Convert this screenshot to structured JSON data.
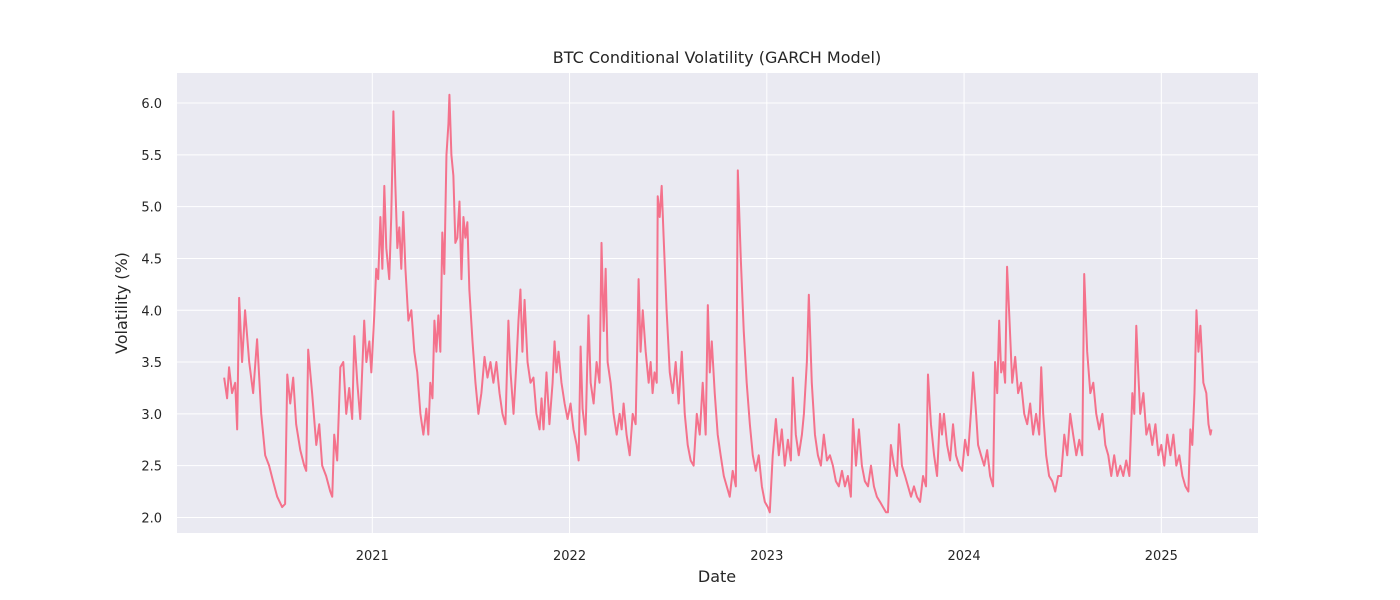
{
  "chart_data": {
    "type": "line",
    "title": "BTC Conditional Volatility (GARCH Model)",
    "xlabel": "Date",
    "ylabel": "Volatility (%)",
    "color": "#f4728c",
    "grid": true,
    "xlim": [
      2020.01,
      2025.49
    ],
    "ylim": [
      1.85,
      6.29
    ],
    "xticks": [
      2021,
      2022,
      2023,
      2024,
      2025
    ],
    "yticks": [
      {
        "value": 2,
        "label": "2.0"
      },
      {
        "value": 2.5,
        "label": "2.5"
      },
      {
        "value": 3,
        "label": "3.0"
      },
      {
        "value": 3.5,
        "label": "3.5"
      },
      {
        "value": 4,
        "label": "4.0"
      },
      {
        "value": 4.5,
        "label": "4.5"
      },
      {
        "value": 5,
        "label": "5.0"
      },
      {
        "value": 5.5,
        "label": "5.5"
      },
      {
        "value": 6,
        "label": "6.0"
      }
    ],
    "x": [
      2020.249,
      2020.264,
      2020.274,
      2020.289,
      2020.305,
      2020.315,
      2020.325,
      2020.34,
      2020.355,
      2020.376,
      2020.396,
      2020.416,
      2020.437,
      2020.457,
      2020.477,
      2020.497,
      2020.518,
      2020.543,
      2020.558,
      2020.569,
      2020.584,
      2020.599,
      2020.614,
      2020.635,
      2020.655,
      2020.665,
      2020.675,
      2020.695,
      2020.716,
      2020.731,
      2020.746,
      2020.766,
      2020.787,
      2020.797,
      2020.807,
      2020.822,
      2020.838,
      2020.853,
      2020.868,
      2020.883,
      2020.898,
      2020.909,
      2020.924,
      2020.939,
      2020.959,
      2020.97,
      2020.985,
      2020.995,
      2021.01,
      2021.02,
      2021.03,
      2021.041,
      2021.051,
      2021.061,
      2021.071,
      2021.086,
      2021.096,
      2021.107,
      2021.117,
      2021.127,
      2021.137,
      2021.147,
      2021.157,
      2021.168,
      2021.183,
      2021.198,
      2021.213,
      2021.228,
      2021.244,
      2021.259,
      2021.274,
      2021.284,
      2021.294,
      2021.305,
      2021.315,
      2021.325,
      2021.335,
      2021.345,
      2021.355,
      2021.365,
      2021.376,
      2021.386,
      2021.391,
      2021.401,
      2021.411,
      2021.421,
      2021.431,
      2021.442,
      2021.452,
      2021.462,
      2021.472,
      2021.482,
      2021.492,
      2021.508,
      2021.523,
      2021.538,
      2021.553,
      2021.569,
      2021.584,
      2021.599,
      2021.614,
      2021.629,
      2021.645,
      2021.66,
      2021.675,
      2021.69,
      2021.701,
      2021.716,
      2021.731,
      2021.741,
      2021.751,
      2021.761,
      2021.772,
      2021.787,
      2021.802,
      2021.817,
      2021.832,
      2021.848,
      2021.858,
      2021.868,
      2021.883,
      2021.898,
      2021.914,
      2021.924,
      2021.934,
      2021.944,
      2021.959,
      2021.975,
      2021.99,
      2022.005,
      2022.02,
      2022.036,
      2022.046,
      2022.056,
      2022.066,
      2022.081,
      2022.096,
      2022.107,
      2022.122,
      2022.137,
      2022.152,
      2022.162,
      2022.173,
      2022.183,
      2022.193,
      2022.208,
      2022.223,
      2022.239,
      2022.254,
      2022.264,
      2022.274,
      2022.289,
      2022.305,
      2022.32,
      2022.335,
      2022.35,
      2022.36,
      2022.371,
      2022.386,
      2022.401,
      2022.411,
      2022.421,
      2022.431,
      2022.442,
      2022.447,
      2022.457,
      2022.467,
      2022.477,
      2022.492,
      2022.508,
      2022.523,
      2022.538,
      2022.553,
      2022.569,
      2022.584,
      2022.599,
      2022.614,
      2022.629,
      2022.645,
      2022.66,
      2022.675,
      2022.69,
      2022.701,
      2022.711,
      2022.721,
      2022.736,
      2022.751,
      2022.766,
      2022.782,
      2022.797,
      2022.812,
      2022.827,
      2022.843,
      2022.853,
      2022.868,
      2022.883,
      2022.898,
      2022.914,
      2022.929,
      2022.944,
      2022.959,
      2022.975,
      2022.99,
      2023.005,
      2023.015,
      2023.03,
      2023.046,
      2023.061,
      2023.076,
      2023.091,
      2023.107,
      2023.122,
      2023.132,
      2023.147,
      2023.162,
      2023.178,
      2023.188,
      2023.203,
      2023.213,
      2023.228,
      2023.244,
      2023.259,
      2023.274,
      2023.289,
      2023.305,
      2023.32,
      2023.335,
      2023.35,
      2023.365,
      2023.381,
      2023.396,
      2023.411,
      2023.426,
      2023.437,
      2023.452,
      2023.467,
      2023.482,
      2023.497,
      2023.513,
      2023.528,
      2023.543,
      2023.558,
      2023.574,
      2023.589,
      2023.604,
      2023.614,
      2023.629,
      2023.645,
      2023.66,
      2023.67,
      2023.685,
      2023.701,
      2023.716,
      2023.731,
      2023.746,
      2023.761,
      2023.777,
      2023.792,
      2023.807,
      2023.817,
      2023.832,
      2023.848,
      2023.863,
      2023.878,
      2023.888,
      2023.898,
      2023.914,
      2023.929,
      2023.944,
      2023.959,
      2023.975,
      2023.99,
      2024.005,
      2024.02,
      2024.036,
      2024.046,
      2024.061,
      2024.071,
      2024.086,
      2024.102,
      2024.117,
      2024.132,
      2024.147,
      2024.157,
      2024.168,
      2024.178,
      2024.188,
      2024.198,
      2024.208,
      2024.218,
      2024.228,
      2024.244,
      2024.259,
      2024.274,
      2024.289,
      2024.305,
      2024.32,
      2024.335,
      2024.35,
      2024.365,
      2024.381,
      2024.391,
      2024.401,
      2024.416,
      2024.431,
      2024.447,
      2024.462,
      2024.477,
      2024.492,
      2024.508,
      2024.523,
      2024.538,
      2024.553,
      2024.569,
      2024.584,
      2024.599,
      2024.609,
      2024.624,
      2024.64,
      2024.655,
      2024.67,
      2024.685,
      2024.701,
      2024.716,
      2024.731,
      2024.746,
      2024.761,
      2024.777,
      2024.792,
      2024.807,
      2024.822,
      2024.838,
      2024.853,
      2024.863,
      2024.873,
      2024.883,
      2024.893,
      2024.909,
      2024.924,
      2024.939,
      2024.954,
      2024.97,
      2024.985,
      2025.0,
      2025.015,
      2025.03,
      2025.046,
      2025.061,
      2025.076,
      2025.091,
      2025.107,
      2025.122,
      2025.137,
      2025.147,
      2025.157,
      2025.168,
      2025.178,
      2025.188,
      2025.198,
      2025.213,
      2025.228,
      2025.239,
      2025.249,
      2025.254
    ],
    "values": [
      3.35,
      3.15,
      3.45,
      3.2,
      3.3,
      2.85,
      4.12,
      3.5,
      4.0,
      3.5,
      3.2,
      3.72,
      3.0,
      2.6,
      2.5,
      2.35,
      2.2,
      2.1,
      2.13,
      3.38,
      3.1,
      3.35,
      2.9,
      2.65,
      2.5,
      2.45,
      3.62,
      3.2,
      2.7,
      2.9,
      2.5,
      2.4,
      2.25,
      2.2,
      2.8,
      2.55,
      3.45,
      3.5,
      3.0,
      3.25,
      2.95,
      3.75,
      3.3,
      2.95,
      3.9,
      3.5,
      3.7,
      3.4,
      3.95,
      4.4,
      4.3,
      4.9,
      4.4,
      5.2,
      4.6,
      4.3,
      4.9,
      5.92,
      5.2,
      4.6,
      4.8,
      4.4,
      4.95,
      4.4,
      3.9,
      4.0,
      3.6,
      3.4,
      3.0,
      2.8,
      3.05,
      2.8,
      3.3,
      3.15,
      3.9,
      3.6,
      3.95,
      3.6,
      4.75,
      4.35,
      5.5,
      5.8,
      6.08,
      5.5,
      5.3,
      4.65,
      4.7,
      5.05,
      4.3,
      4.9,
      4.7,
      4.85,
      4.2,
      3.7,
      3.3,
      3.0,
      3.2,
      3.55,
      3.35,
      3.5,
      3.3,
      3.5,
      3.2,
      3.0,
      2.9,
      3.9,
      3.4,
      3.0,
      3.5,
      3.9,
      4.2,
      3.6,
      4.1,
      3.5,
      3.3,
      3.35,
      3.0,
      2.85,
      3.15,
      2.85,
      3.4,
      2.9,
      3.3,
      3.7,
      3.4,
      3.6,
      3.3,
      3.1,
      2.95,
      3.1,
      2.85,
      2.7,
      2.55,
      3.65,
      3.05,
      2.8,
      3.95,
      3.3,
      3.1,
      3.5,
      3.3,
      4.65,
      3.8,
      4.4,
      3.5,
      3.3,
      3.0,
      2.8,
      3.0,
      2.85,
      3.1,
      2.8,
      2.6,
      3.0,
      2.9,
      4.3,
      3.6,
      4.0,
      3.6,
      3.3,
      3.5,
      3.2,
      3.4,
      3.3,
      5.1,
      4.9,
      5.2,
      4.7,
      4.0,
      3.4,
      3.2,
      3.5,
      3.1,
      3.6,
      3.0,
      2.7,
      2.55,
      2.5,
      3.0,
      2.8,
      3.3,
      2.8,
      4.05,
      3.4,
      3.7,
      3.2,
      2.8,
      2.6,
      2.4,
      2.3,
      2.2,
      2.45,
      2.3,
      5.35,
      4.5,
      3.8,
      3.3,
      2.9,
      2.6,
      2.45,
      2.6,
      2.3,
      2.15,
      2.1,
      2.05,
      2.6,
      2.95,
      2.6,
      2.85,
      2.5,
      2.75,
      2.55,
      3.35,
      2.8,
      2.6,
      2.8,
      3.0,
      3.5,
      4.15,
      3.3,
      2.8,
      2.6,
      2.5,
      2.8,
      2.55,
      2.6,
      2.5,
      2.35,
      2.3,
      2.45,
      2.3,
      2.4,
      2.2,
      2.95,
      2.5,
      2.85,
      2.5,
      2.35,
      2.3,
      2.5,
      2.3,
      2.2,
      2.15,
      2.1,
      2.05,
      2.05,
      2.7,
      2.5,
      2.4,
      2.9,
      2.5,
      2.4,
      2.3,
      2.2,
      2.3,
      2.2,
      2.15,
      2.4,
      2.3,
      3.38,
      2.9,
      2.6,
      2.4,
      3.0,
      2.8,
      3.0,
      2.7,
      2.55,
      2.9,
      2.6,
      2.5,
      2.45,
      2.75,
      2.6,
      3.05,
      3.4,
      3.0,
      2.7,
      2.6,
      2.5,
      2.65,
      2.4,
      2.3,
      3.5,
      3.2,
      3.9,
      3.4,
      3.5,
      3.3,
      4.42,
      4.0,
      3.3,
      3.55,
      3.2,
      3.3,
      3.0,
      2.9,
      3.1,
      2.8,
      3.0,
      2.8,
      3.45,
      3.0,
      2.6,
      2.4,
      2.35,
      2.25,
      2.4,
      2.4,
      2.8,
      2.6,
      3.0,
      2.8,
      2.6,
      2.75,
      2.6,
      4.35,
      3.6,
      3.2,
      3.3,
      3.0,
      2.85,
      3.0,
      2.7,
      2.6,
      2.4,
      2.6,
      2.4,
      2.5,
      2.4,
      2.55,
      2.4,
      3.2,
      3.0,
      3.85,
      3.4,
      3.0,
      3.2,
      2.8,
      2.9,
      2.7,
      2.9,
      2.6,
      2.7,
      2.5,
      2.8,
      2.6,
      2.8,
      2.5,
      2.6,
      2.4,
      2.3,
      2.25,
      2.85,
      2.7,
      3.2,
      4.0,
      3.6,
      3.85,
      3.3,
      3.2,
      2.9,
      2.8,
      2.85
    ]
  }
}
